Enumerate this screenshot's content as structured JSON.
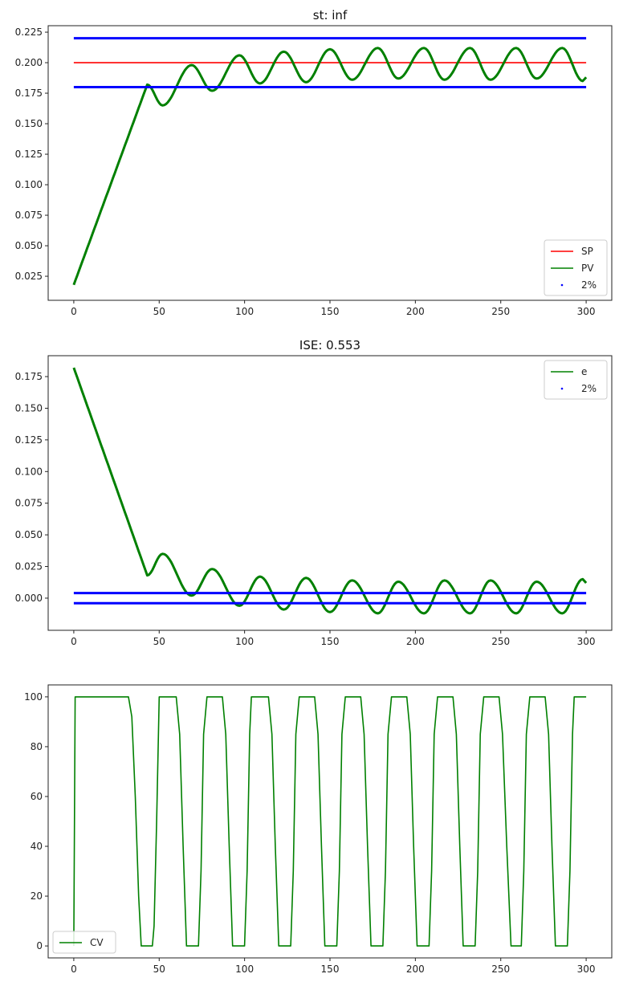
{
  "chart_data": [
    {
      "type": "line",
      "title": "st: inf",
      "xlim": [
        -15,
        315
      ],
      "ylim": [
        0.0053,
        0.2303
      ],
      "xticks": [
        0,
        50,
        100,
        150,
        200,
        250,
        300
      ],
      "yticks": [
        0.025,
        0.05,
        0.075,
        0.1,
        0.125,
        0.15,
        0.175,
        0.2,
        0.225
      ],
      "ytick_decimals": 3,
      "legend_position": "bottom-right",
      "series": [
        {
          "name": "SP",
          "color": "#ff0000",
          "style": "line",
          "points": [
            [
              0,
              0.2
            ],
            [
              300,
              0.2
            ]
          ]
        },
        {
          "name": "PV",
          "color": "#008000",
          "style": "line",
          "points": [
            [
              0,
              0.018
            ],
            [
              43,
              0.182
            ],
            [
              52,
              0.165
            ],
            [
              69,
              0.198
            ],
            [
              81,
              0.177
            ],
            [
              97,
              0.206
            ],
            [
              109,
              0.183
            ],
            [
              123,
              0.209
            ],
            [
              136,
              0.184
            ],
            [
              150,
              0.211
            ],
            [
              163,
              0.186
            ],
            [
              178,
              0.212
            ],
            [
              190,
              0.187
            ],
            [
              205,
              0.212
            ],
            [
              217,
              0.186
            ],
            [
              232,
              0.212
            ],
            [
              244,
              0.186
            ],
            [
              259,
              0.212
            ],
            [
              271,
              0.187
            ],
            [
              286,
              0.212
            ],
            [
              298,
              0.185
            ],
            [
              300,
              0.188
            ]
          ]
        },
        {
          "name": "2%",
          "color": "#0000ff",
          "style": "band",
          "points": [
            [
              0,
              0.22
            ],
            [
              300,
              0.22
            ],
            [
              0,
              0.18
            ],
            [
              300,
              0.18
            ]
          ]
        }
      ]
    },
    {
      "type": "line",
      "title": "ISE: 0.553",
      "xlim": [
        -15,
        315
      ],
      "ylim": [
        -0.0254,
        0.1915
      ],
      "xticks": [
        0,
        50,
        100,
        150,
        200,
        250,
        300
      ],
      "yticks": [
        0,
        0.025,
        0.05,
        0.075,
        0.1,
        0.125,
        0.15,
        0.175
      ],
      "ytick_decimals": 3,
      "legend_position": "top-right",
      "series": [
        {
          "name": "e",
          "color": "#008000",
          "style": "line",
          "points": [
            [
              0,
              0.182
            ],
            [
              43,
              0.018
            ],
            [
              52,
              0.035
            ],
            [
              69,
              0.002
            ],
            [
              81,
              0.023
            ],
            [
              97,
              -0.006
            ],
            [
              109,
              0.017
            ],
            [
              123,
              -0.009
            ],
            [
              136,
              0.016
            ],
            [
              150,
              -0.011
            ],
            [
              163,
              0.014
            ],
            [
              178,
              -0.012
            ],
            [
              190,
              0.013
            ],
            [
              205,
              -0.012
            ],
            [
              217,
              0.014
            ],
            [
              232,
              -0.012
            ],
            [
              244,
              0.014
            ],
            [
              259,
              -0.012
            ],
            [
              271,
              0.013
            ],
            [
              286,
              -0.012
            ],
            [
              298,
              0.015
            ],
            [
              300,
              0.012
            ]
          ]
        },
        {
          "name": "2%",
          "color": "#0000ff",
          "style": "band",
          "points": [
            [
              0,
              0.004
            ],
            [
              300,
              0.004
            ],
            [
              0,
              -0.004
            ],
            [
              300,
              -0.004
            ]
          ]
        }
      ]
    },
    {
      "type": "line",
      "title": "",
      "xlim": [
        -15,
        315
      ],
      "ylim": [
        -4.8,
        104.8
      ],
      "xticks": [
        0,
        50,
        100,
        150,
        200,
        250,
        300
      ],
      "yticks": [
        0,
        20,
        40,
        60,
        80,
        100
      ],
      "ytick_decimals": 0,
      "legend_position": "bottom-left",
      "series": [
        {
          "name": "CV",
          "color": "#008000",
          "style": "step",
          "points": [
            [
              0,
              0
            ],
            [
              0.8,
              100
            ],
            [
              32,
              100
            ],
            [
              34,
              92
            ],
            [
              36,
              60
            ],
            [
              38,
              20
            ],
            [
              39.5,
              0
            ],
            [
              46,
              0
            ],
            [
              47,
              8
            ],
            [
              48.5,
              50
            ],
            [
              50,
              100
            ],
            [
              60,
              100
            ],
            [
              62,
              85
            ],
            [
              64,
              40
            ],
            [
              66,
              0
            ],
            [
              73,
              0
            ],
            [
              74.5,
              30
            ],
            [
              76,
              85
            ],
            [
              78,
              100
            ],
            [
              87,
              100
            ],
            [
              89,
              85
            ],
            [
              91,
              40
            ],
            [
              93,
              0
            ],
            [
              100,
              0
            ],
            [
              101.5,
              30
            ],
            [
              103,
              85
            ],
            [
              104,
              100
            ],
            [
              114,
              100
            ],
            [
              116,
              85
            ],
            [
              118,
              40
            ],
            [
              120,
              0
            ],
            [
              127,
              0
            ],
            [
              128.5,
              30
            ],
            [
              130,
              85
            ],
            [
              132,
              100
            ],
            [
              141,
              100
            ],
            [
              143,
              85
            ],
            [
              145,
              40
            ],
            [
              147,
              0
            ],
            [
              154,
              0
            ],
            [
              155.5,
              30
            ],
            [
              157,
              85
            ],
            [
              159,
              100
            ],
            [
              168,
              100
            ],
            [
              170,
              85
            ],
            [
              172,
              40
            ],
            [
              174,
              0
            ],
            [
              181,
              0
            ],
            [
              182.5,
              30
            ],
            [
              184,
              85
            ],
            [
              186,
              100
            ],
            [
              195,
              100
            ],
            [
              197,
              85
            ],
            [
              199,
              40
            ],
            [
              201,
              0
            ],
            [
              208,
              0
            ],
            [
              209.5,
              30
            ],
            [
              211,
              85
            ],
            [
              213,
              100
            ],
            [
              222,
              100
            ],
            [
              224,
              85
            ],
            [
              226,
              40
            ],
            [
              228,
              0
            ],
            [
              235,
              0
            ],
            [
              236.5,
              30
            ],
            [
              238,
              85
            ],
            [
              240,
              100
            ],
            [
              249,
              100
            ],
            [
              251,
              85
            ],
            [
              253.5,
              40
            ],
            [
              256,
              0
            ],
            [
              262,
              0
            ],
            [
              263.5,
              30
            ],
            [
              265,
              85
            ],
            [
              267,
              100
            ],
            [
              276,
              100
            ],
            [
              278,
              85
            ],
            [
              280,
              40
            ],
            [
              282,
              0
            ],
            [
              289,
              0
            ],
            [
              290.5,
              30
            ],
            [
              292,
              85
            ],
            [
              293,
              100
            ],
            [
              300,
              100
            ]
          ]
        }
      ]
    }
  ]
}
